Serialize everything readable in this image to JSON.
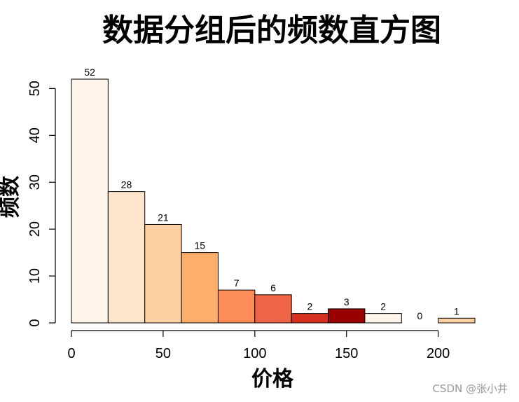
{
  "chart_data": {
    "type": "bar",
    "title": "数据分组后的频数直方图",
    "xlabel": "价格",
    "ylabel": "频数",
    "bins": [
      {
        "start": 0,
        "end": 20,
        "count": 52,
        "color": "#FFF5EB"
      },
      {
        "start": 20,
        "end": 40,
        "count": 28,
        "color": "#FEE6CE"
      },
      {
        "start": 40,
        "end": 60,
        "count": 21,
        "color": "#FDD0A2"
      },
      {
        "start": 60,
        "end": 80,
        "count": 15,
        "color": "#FDAE6B"
      },
      {
        "start": 80,
        "end": 100,
        "count": 7,
        "color": "#FC8D59"
      },
      {
        "start": 100,
        "end": 120,
        "count": 6,
        "color": "#EF6548"
      },
      {
        "start": 120,
        "end": 140,
        "count": 2,
        "color": "#D7301F"
      },
      {
        "start": 140,
        "end": 160,
        "count": 3,
        "color": "#990000"
      },
      {
        "start": 160,
        "end": 180,
        "count": 2,
        "color": "#FFF5EB"
      },
      {
        "start": 180,
        "end": 200,
        "count": 0,
        "color": "#FEE6CE"
      },
      {
        "start": 200,
        "end": 220,
        "count": 1,
        "color": "#FDD0A2"
      }
    ],
    "xlim": [
      0,
      220
    ],
    "ylim": [
      0,
      52
    ],
    "xticks": [
      0,
      50,
      100,
      150,
      200
    ],
    "yticks": [
      0,
      10,
      20,
      30,
      40,
      50
    ],
    "grid": false
  },
  "watermark": "CSDN @张小井"
}
